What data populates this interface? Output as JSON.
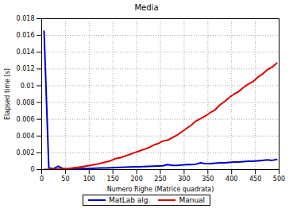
{
  "chart_data": {
    "type": "line",
    "title": "Media",
    "x_label": "Numero Righe (Matrice quadrata)",
    "y_label": "Elapsed time [s]",
    "x": [
      5,
      15,
      25,
      35,
      45,
      55,
      65,
      75,
      85,
      95,
      105,
      115,
      125,
      135,
      145,
      155,
      165,
      175,
      185,
      195,
      205,
      215,
      225,
      235,
      245,
      255,
      265,
      275,
      285,
      295,
      305,
      315,
      325,
      335,
      345,
      355,
      365,
      375,
      385,
      395,
      405,
      415,
      425,
      435,
      445,
      455,
      465,
      475,
      485,
      495
    ],
    "series": [
      {
        "name": "MatLab alg.",
        "color": "#0000cc",
        "values": [
          0.0165,
          0.0002,
          0.0001,
          0.0004,
          0.0001,
          0.0001,
          0.0001,
          0.0001,
          0.00012,
          0.00013,
          0.00015,
          0.00016,
          0.00018,
          0.0002,
          0.00022,
          0.00024,
          0.00026,
          0.00028,
          0.0003,
          0.00032,
          0.00034,
          0.00036,
          0.00038,
          0.0004,
          0.00042,
          0.00045,
          0.0006,
          0.0005,
          0.0005,
          0.00055,
          0.0006,
          0.0006,
          0.00065,
          0.0008,
          0.0007,
          0.0007,
          0.00075,
          0.0008,
          0.0008,
          0.00085,
          0.0009,
          0.0009,
          0.00095,
          0.001,
          0.001,
          0.00105,
          0.0011,
          0.00115,
          0.0011,
          0.0012
        ]
      },
      {
        "name": "Manual",
        "color": "#dd0000",
        "values": [
          1e-05,
          2e-05,
          4e-05,
          6e-05,
          0.0001,
          0.00013,
          0.00018,
          0.00025,
          0.00033,
          0.00042,
          0.00052,
          0.00063,
          0.00076,
          0.0009,
          0.00105,
          0.0013,
          0.0014,
          0.0016,
          0.0018,
          0.002,
          0.0022,
          0.0024,
          0.0026,
          0.0029,
          0.0031,
          0.0034,
          0.0035,
          0.0038,
          0.0041,
          0.0045,
          0.0049,
          0.0053,
          0.0058,
          0.0061,
          0.0064,
          0.0068,
          0.0071,
          0.0077,
          0.0081,
          0.0086,
          0.009,
          0.0093,
          0.0098,
          0.0102,
          0.0105,
          0.011,
          0.0114,
          0.0119,
          0.0122,
          0.0127
        ]
      }
    ],
    "xlim": [
      0,
      500
    ],
    "xticks": [
      0,
      50,
      100,
      150,
      200,
      250,
      300,
      350,
      400,
      450,
      500
    ],
    "ylim": [
      0,
      0.018
    ],
    "yticks": [
      0,
      0.002,
      0.004,
      0.006,
      0.008,
      0.01,
      0.012,
      0.014,
      0.016,
      0.018
    ],
    "grid": true,
    "legend": "bottom"
  }
}
